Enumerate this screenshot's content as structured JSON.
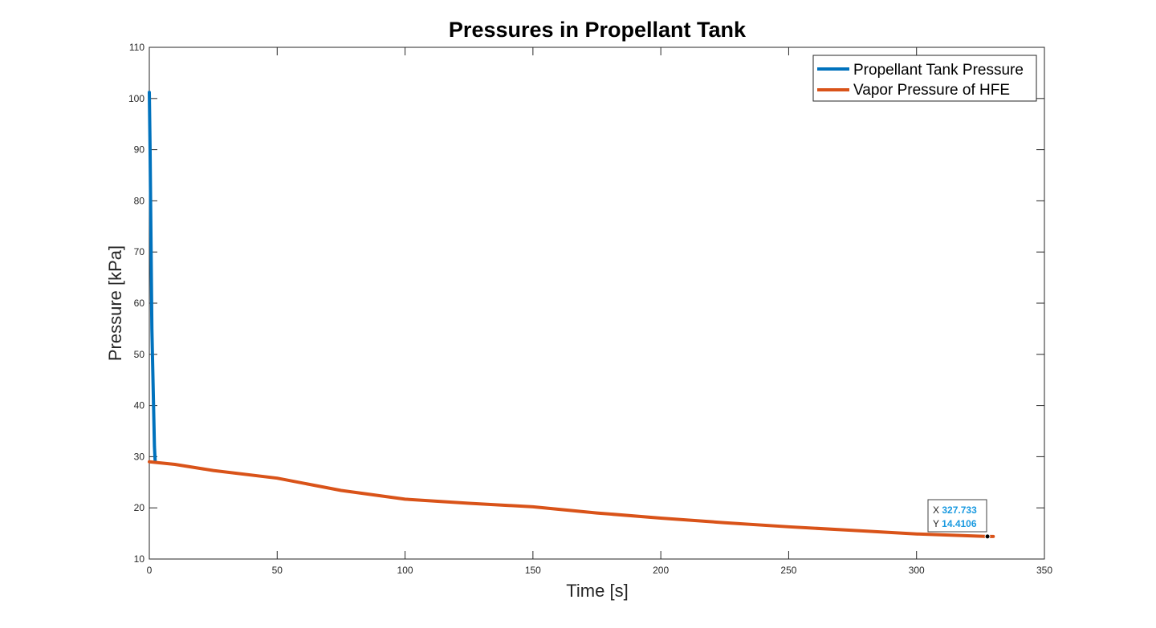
{
  "chart_data": {
    "type": "line",
    "title": "Pressures in Propellant Tank",
    "xlabel": "Time [s]",
    "ylabel": "Pressure [kPa]",
    "xlim": [
      0,
      350
    ],
    "ylim": [
      10,
      110
    ],
    "xticks": [
      0,
      50,
      100,
      150,
      200,
      250,
      300,
      350
    ],
    "yticks": [
      10,
      20,
      30,
      40,
      50,
      60,
      70,
      80,
      90,
      100,
      110
    ],
    "grid": false,
    "legend_position": "top-right",
    "series": [
      {
        "name": "Propellant Tank Pressure",
        "color": "#0072bd",
        "x": [
          0,
          0.3,
          1,
          2,
          2.3
        ],
        "y": [
          101.2,
          90,
          55,
          32,
          29
        ]
      },
      {
        "name": "Vapor Pressure of HFE",
        "color": "#d95319",
        "x": [
          0,
          10,
          25,
          50,
          75,
          100,
          125,
          150,
          175,
          200,
          225,
          250,
          275,
          300,
          327.7,
          330
        ],
        "y": [
          29,
          28.5,
          27.3,
          25.8,
          23.4,
          21.7,
          20.9,
          20.2,
          19.0,
          18.0,
          17.1,
          16.3,
          15.6,
          14.9,
          14.4,
          14.4
        ]
      }
    ],
    "datatip": {
      "x_label": "X",
      "x_value": "327.733",
      "y_label": "Y",
      "y_value": "14.4106",
      "x": 327.733,
      "y": 14.4106
    }
  }
}
